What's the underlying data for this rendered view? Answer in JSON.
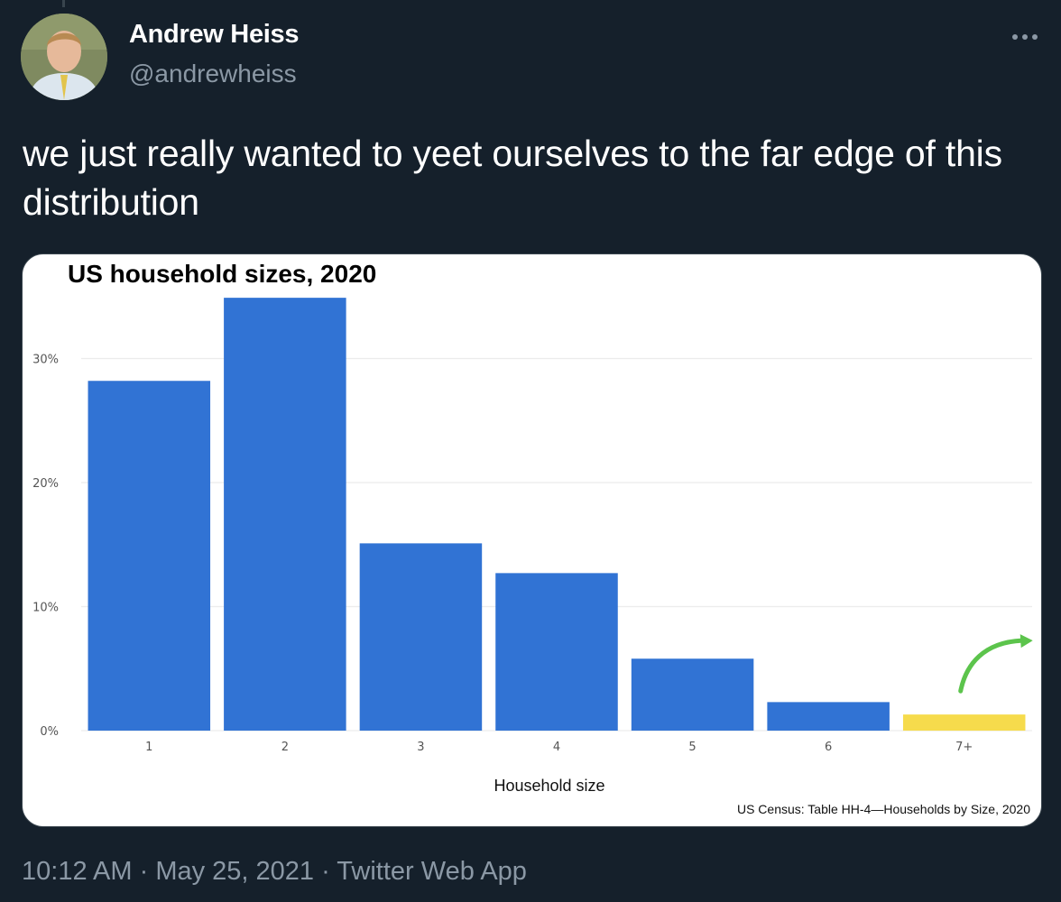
{
  "tweet": {
    "author_name": "Andrew Heiss",
    "author_handle": "@andrewheiss",
    "text": "we just really wanted to yeet ourselves to the far edge of this distribution",
    "time": "10:12 AM",
    "separator": " · ",
    "date": "May 25, 2021",
    "source": "Twitter Web App",
    "more_icon": "more-dots-icon"
  },
  "chart_data": {
    "type": "bar",
    "title": "US household sizes, 2020",
    "xlabel": "Household size",
    "ylabel": "",
    "categories": [
      "1",
      "2",
      "3",
      "4",
      "5",
      "6",
      "7+"
    ],
    "values": [
      28.2,
      34.9,
      15.1,
      12.7,
      5.8,
      2.3,
      1.3
    ],
    "ylim": [
      0,
      35
    ],
    "yticks": [
      0,
      10,
      20,
      30
    ],
    "ytick_labels": [
      "0%",
      "10%",
      "20%",
      "30%"
    ],
    "colors": [
      "#3173d4",
      "#3173d4",
      "#3173d4",
      "#3173d4",
      "#3173d4",
      "#3173d4",
      "#f6db4c"
    ],
    "annotation": {
      "type": "arrow",
      "target": "7+",
      "color": "#5cc44c"
    },
    "caption": "US Census: Table HH-4—Households by Size, 2020",
    "grid": true
  }
}
